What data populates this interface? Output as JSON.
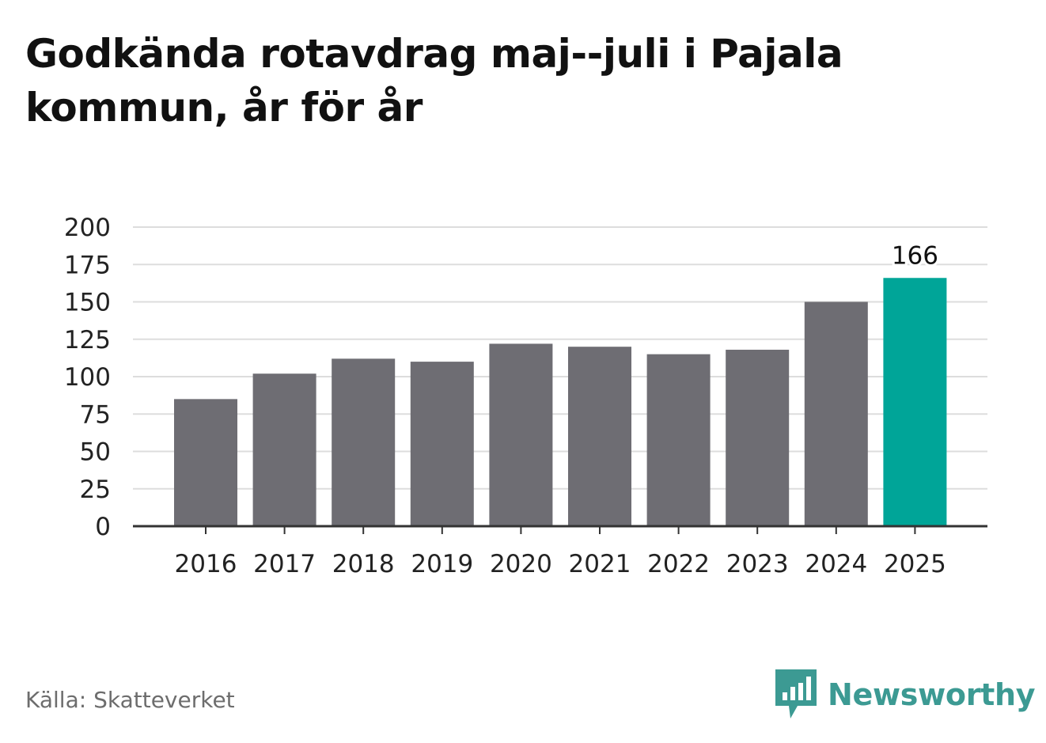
{
  "title": "Godkända rotavdrag maj--juli i Pajala kommun, år för år",
  "source": "Källa: Skatteverket",
  "brand": {
    "name": "Newsworthy",
    "icon": "newsworthy-bar-chart-icon",
    "color": "#3c9a93"
  },
  "colors": {
    "bar": "#6e6d73",
    "highlight": "#00a598",
    "grid": "#dddddd",
    "axis": "#333333"
  },
  "chart_data": {
    "type": "bar",
    "categories": [
      "2016",
      "2017",
      "2018",
      "2019",
      "2020",
      "2021",
      "2022",
      "2023",
      "2024",
      "2025"
    ],
    "values": [
      85,
      102,
      112,
      110,
      122,
      120,
      115,
      118,
      150,
      166
    ],
    "highlight_index": 9,
    "data_labels": [
      {
        "index": 9,
        "text": "166"
      }
    ],
    "ylim": [
      0,
      200
    ],
    "yticks": [
      0,
      25,
      50,
      75,
      100,
      125,
      150,
      175,
      200
    ],
    "xlabel": "",
    "ylabel": "",
    "grid": true
  }
}
